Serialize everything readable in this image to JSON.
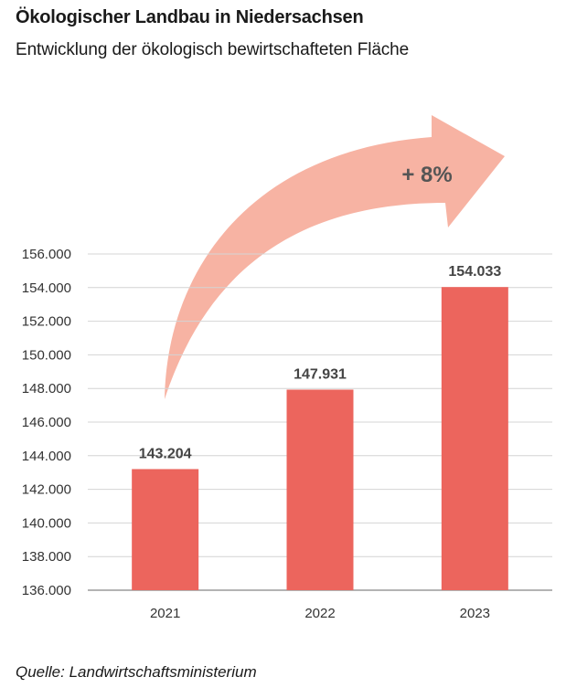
{
  "header": {
    "title": "Ökologischer Landbau in Niedersachsen",
    "subtitle": "Entwicklung der ökologisch bewirtschafteten Fläche"
  },
  "footer": {
    "source": "Quelle: Landwirtschaftsministerium"
  },
  "colors": {
    "bar": "#ec655d",
    "arrow": "#f7b3a3",
    "grid": "#d4d4d4",
    "axis": "#9a9a9a"
  },
  "chart_data": {
    "type": "bar",
    "categories": [
      "2021",
      "2022",
      "2023"
    ],
    "values": [
      143204,
      147931,
      154033
    ],
    "value_labels": [
      "143.204",
      "147.931",
      "154.033"
    ],
    "ylim": [
      136000,
      156000
    ],
    "yticks": [
      136000,
      138000,
      140000,
      142000,
      144000,
      146000,
      148000,
      150000,
      152000,
      154000,
      156000
    ],
    "ytick_labels": [
      "136.000",
      "138.000",
      "140.000",
      "142.000",
      "144.000",
      "146.000",
      "148.000",
      "150.000",
      "152.000",
      "154.000",
      "156.000"
    ],
    "grid": true,
    "annotation": "+ 8%"
  }
}
